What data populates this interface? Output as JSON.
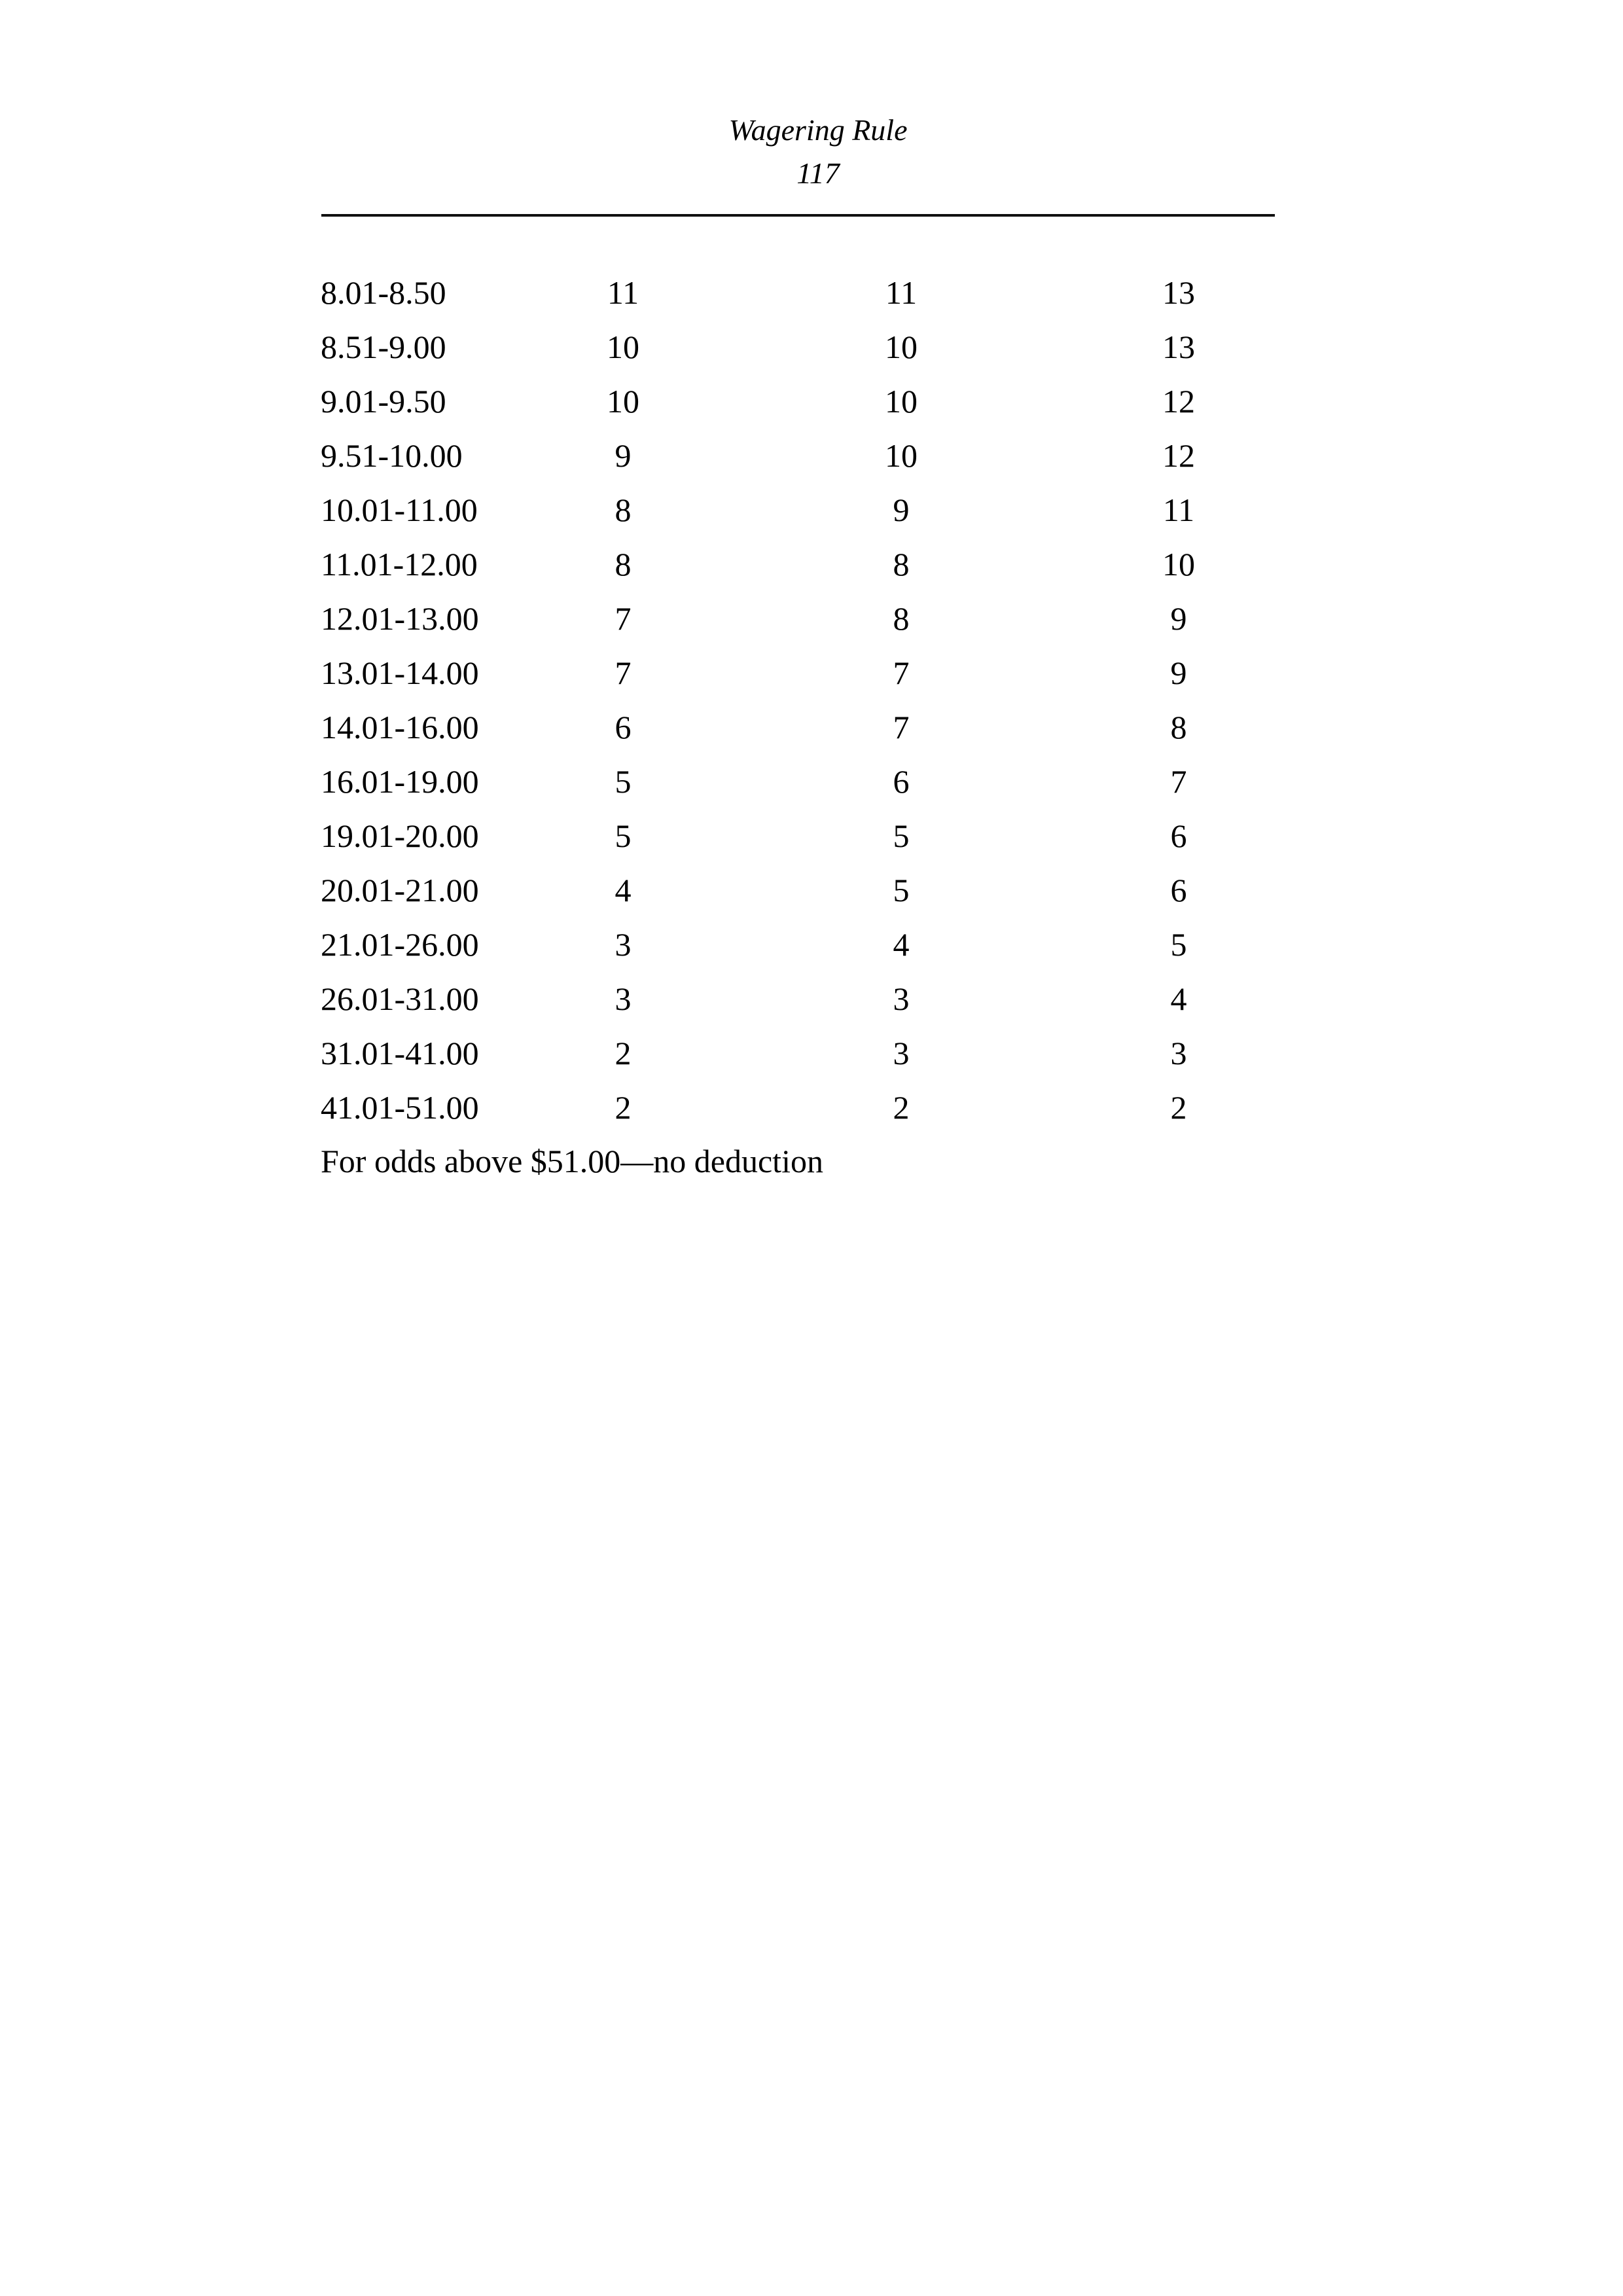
{
  "page": {
    "background": "#ffffff",
    "text_color": "#000000",
    "divider_color": "#101010"
  },
  "header": {
    "title": "Wagering Rule",
    "page_number": "117"
  },
  "table": {
    "rows": [
      [
        "8.01-8.50",
        "11",
        "11",
        "13"
      ],
      [
        "8.51-9.00",
        "10",
        "10",
        "13"
      ],
      [
        "9.01-9.50",
        "10",
        "10",
        "12"
      ],
      [
        "9.51-10.00",
        "9",
        "10",
        "12"
      ],
      [
        "10.01-11.00",
        "8",
        "9",
        "11"
      ],
      [
        "11.01-12.00",
        "8",
        "8",
        "10"
      ],
      [
        "12.01-13.00",
        "7",
        "8",
        "9"
      ],
      [
        "13.01-14.00",
        "7",
        "7",
        "9"
      ],
      [
        "14.01-16.00",
        "6",
        "7",
        "8"
      ],
      [
        "16.01-19.00",
        "5",
        "6",
        "7"
      ],
      [
        "19.01-20.00",
        "5",
        "5",
        "6"
      ],
      [
        "20.01-21.00",
        "4",
        "5",
        "6"
      ],
      [
        "21.01-26.00",
        "3",
        "4",
        "5"
      ],
      [
        "26.01-31.00",
        "3",
        "3",
        "4"
      ],
      [
        "31.01-41.00",
        "2",
        "3",
        "3"
      ],
      [
        "41.01-51.00",
        "2",
        "2",
        "2"
      ]
    ]
  },
  "footer": {
    "note": "For odds above $51.00—no deduction"
  }
}
